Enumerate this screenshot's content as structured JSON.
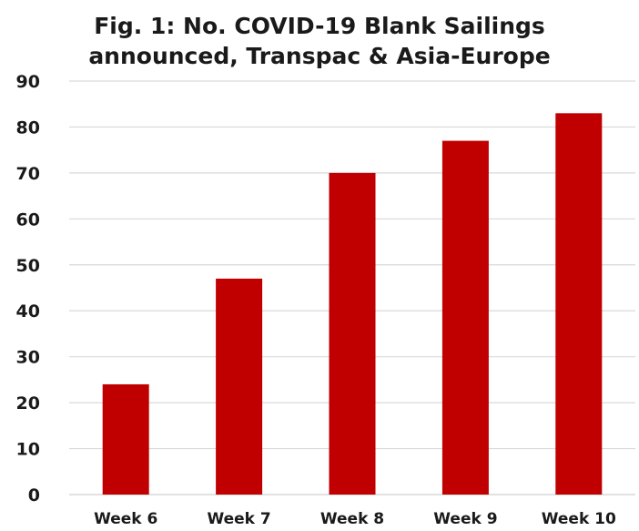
{
  "chart_data": {
    "type": "bar",
    "title_line1": "Fig. 1: No. COVID-19 Blank Sailings",
    "title_line2": "announced, Transpac & Asia-Europe",
    "categories": [
      "Week 6",
      "Week 7",
      "Week 8",
      "Week 9",
      "Week 10"
    ],
    "values": [
      24,
      47,
      70,
      77,
      83
    ],
    "ylim": [
      0,
      90
    ],
    "yticks": [
      0,
      10,
      20,
      30,
      40,
      50,
      60,
      70,
      80,
      90
    ],
    "grid": true,
    "legend": "none",
    "bar_color": "#c00000",
    "grid_color": "#d9d9d9"
  }
}
